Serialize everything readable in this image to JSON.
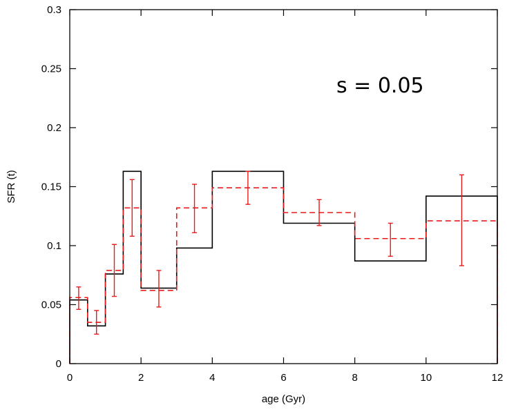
{
  "chart_data": {
    "type": "line",
    "title": "",
    "xlabel": "age (Gyr)",
    "ylabel": "SFR (t)",
    "xlim": [
      0,
      12
    ],
    "ylim": [
      0,
      0.3
    ],
    "xticks": [
      0,
      2,
      4,
      6,
      8,
      10,
      12
    ],
    "xtick_labels": [
      "0",
      "2",
      "4",
      "6",
      "8",
      "10",
      "12"
    ],
    "yticks": [
      0,
      0.05,
      0.1,
      0.15,
      0.2,
      0.25,
      0.3
    ],
    "ytick_labels": [
      "0",
      "0.05",
      "0.1",
      "0.15",
      "0.2",
      "0.25",
      "0.3"
    ],
    "grid": false,
    "annotation": "s = 0.05",
    "bin_edges": [
      0,
      0.5,
      1,
      1.5,
      2,
      3,
      4,
      6,
      8,
      10,
      12
    ],
    "series": [
      {
        "style": "solid",
        "color": "#000000",
        "values": [
          0.054,
          0.032,
          0.076,
          0.163,
          0.064,
          0.098,
          0.163,
          0.119,
          0.087,
          0.142
        ]
      },
      {
        "style": "dashed",
        "color": "#e8191a",
        "values": [
          0.056,
          0.035,
          0.079,
          0.132,
          0.062,
          0.132,
          0.149,
          0.128,
          0.106,
          0.121
        ],
        "error_x": [
          0.25,
          0.75,
          1.25,
          1.75,
          2.5,
          3.5,
          5,
          7,
          9,
          11
        ],
        "error_low": [
          0.046,
          0.025,
          0.057,
          0.108,
          0.048,
          0.111,
          0.135,
          0.117,
          0.091,
          0.083
        ],
        "error_high": [
          0.065,
          0.045,
          0.101,
          0.156,
          0.079,
          0.152,
          0.163,
          0.139,
          0.119,
          0.16
        ]
      }
    ]
  }
}
